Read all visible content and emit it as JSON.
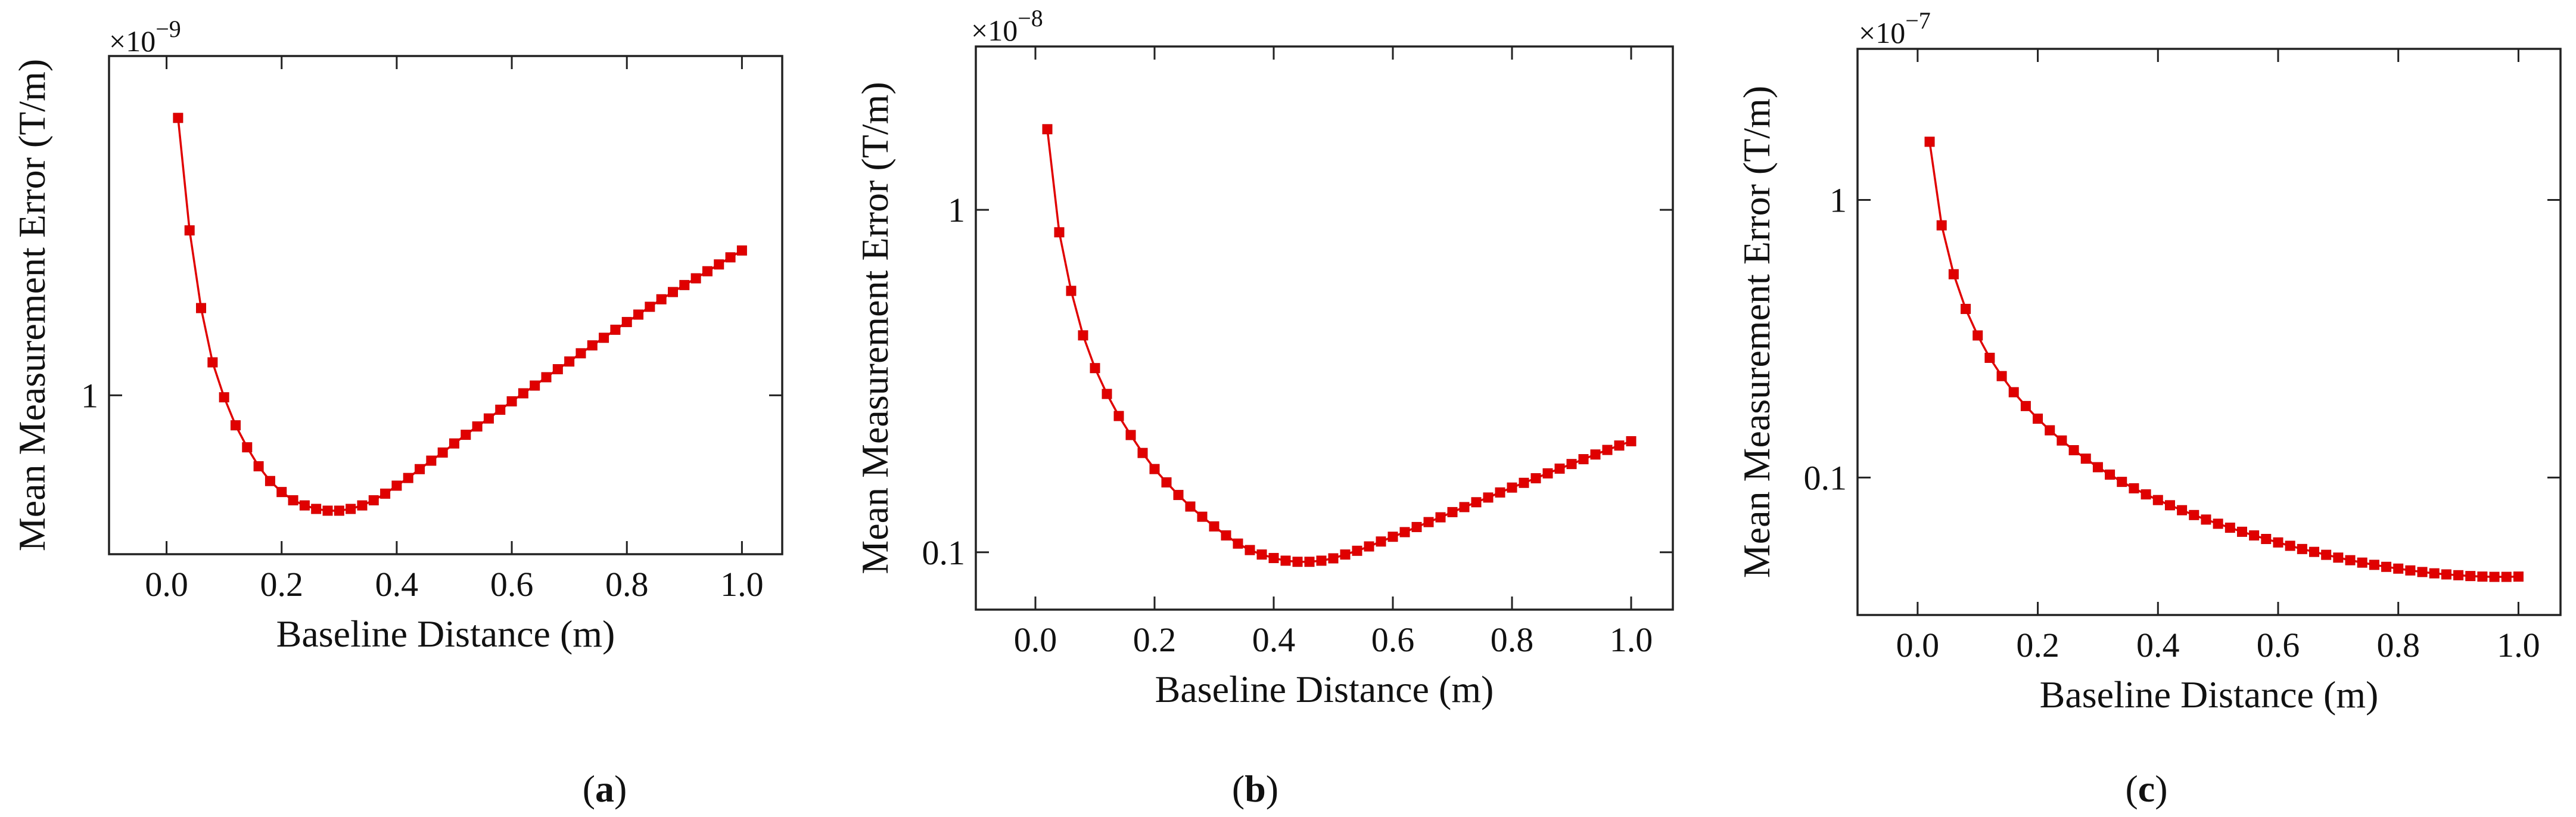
{
  "figure": {
    "panels": [
      {
        "id": "a",
        "label_open": "(",
        "label_letter": "a",
        "label_close": ")",
        "multiplier": "×10",
        "exponent": "−9"
      },
      {
        "id": "b",
        "label_open": "(",
        "label_letter": "b",
        "label_close": ")",
        "multiplier": "×10",
        "exponent": "−8"
      },
      {
        "id": "c",
        "label_open": "(",
        "label_letter": "c",
        "label_close": ")",
        "multiplier": "×10",
        "exponent": "−7"
      }
    ]
  },
  "chart_data": [
    {
      "type": "line",
      "title": "",
      "xlabel": "Baseline Distance (m)",
      "ylabel": "Mean Measurement Error (T/m)",
      "xlim": [
        -0.1,
        1.07
      ],
      "yscale": "log",
      "ylim": [
        0.45,
        5.5
      ],
      "x_ticks": [
        0.0,
        0.2,
        0.4,
        0.6,
        0.8,
        1.0
      ],
      "x_tick_labels": [
        "0.0",
        "0.2",
        "0.4",
        "0.6",
        "0.8",
        "1.0"
      ],
      "y_ticks": [
        1
      ],
      "y_tick_labels": [
        "1"
      ],
      "y_unit_multiplier": "1e-9",
      "marker": "square",
      "color": "#e00000",
      "series": [
        {
          "name": "Mean Measurement Error",
          "x": [
            0.02,
            0.04,
            0.06,
            0.08,
            0.1,
            0.12,
            0.14,
            0.16,
            0.18,
            0.2,
            0.22,
            0.24,
            0.26,
            0.28,
            0.3,
            0.32,
            0.34,
            0.36,
            0.38,
            0.4,
            0.42,
            0.44,
            0.46,
            0.48,
            0.5,
            0.52,
            0.54,
            0.56,
            0.58,
            0.6,
            0.62,
            0.64,
            0.66,
            0.68,
            0.7,
            0.72,
            0.74,
            0.76,
            0.78,
            0.8,
            0.82,
            0.84,
            0.86,
            0.88,
            0.9,
            0.92,
            0.94,
            0.96,
            0.98,
            1.0
          ],
          "y": [
            4.03,
            2.29,
            1.55,
            1.18,
            0.99,
            0.86,
            0.77,
            0.7,
            0.65,
            0.615,
            0.59,
            0.575,
            0.565,
            0.56,
            0.56,
            0.565,
            0.575,
            0.59,
            0.61,
            0.635,
            0.66,
            0.69,
            0.72,
            0.75,
            0.785,
            0.82,
            0.855,
            0.89,
            0.93,
            0.97,
            1.01,
            1.05,
            1.095,
            1.14,
            1.185,
            1.235,
            1.285,
            1.335,
            1.39,
            1.445,
            1.5,
            1.56,
            1.62,
            1.68,
            1.74,
            1.8,
            1.865,
            1.93,
            2.0,
            2.07
          ]
        }
      ]
    },
    {
      "type": "line",
      "title": "",
      "xlabel": "Baseline Distance (m)",
      "ylabel": "Mean Measurement Error (T/m)",
      "xlim": [
        -0.1,
        1.07
      ],
      "yscale": "log",
      "ylim": [
        0.068,
        3.0
      ],
      "x_ticks": [
        0.0,
        0.2,
        0.4,
        0.6,
        0.8,
        1.0
      ],
      "x_tick_labels": [
        "0.0",
        "0.2",
        "0.4",
        "0.6",
        "0.8",
        "1.0"
      ],
      "y_ticks": [
        0.1,
        1
      ],
      "y_tick_labels": [
        "0.1",
        "1"
      ],
      "y_unit_multiplier": "1e-8",
      "marker": "square",
      "color": "#e00000",
      "series": [
        {
          "name": "Mean Measurement Error",
          "x": [
            0.02,
            0.04,
            0.06,
            0.08,
            0.1,
            0.12,
            0.14,
            0.16,
            0.18,
            0.2,
            0.22,
            0.24,
            0.26,
            0.28,
            0.3,
            0.32,
            0.34,
            0.36,
            0.38,
            0.4,
            0.42,
            0.44,
            0.46,
            0.48,
            0.5,
            0.52,
            0.54,
            0.56,
            0.58,
            0.6,
            0.62,
            0.64,
            0.66,
            0.68,
            0.7,
            0.72,
            0.74,
            0.76,
            0.78,
            0.8,
            0.82,
            0.84,
            0.86,
            0.88,
            0.9,
            0.92,
            0.94,
            0.96,
            0.98,
            1.0
          ],
          "y": [
            1.72,
            0.86,
            0.58,
            0.43,
            0.345,
            0.29,
            0.25,
            0.22,
            0.195,
            0.175,
            0.16,
            0.147,
            0.136,
            0.127,
            0.119,
            0.112,
            0.106,
            0.1015,
            0.0985,
            0.0962,
            0.0945,
            0.0938,
            0.0938,
            0.0945,
            0.096,
            0.0985,
            0.101,
            0.104,
            0.1075,
            0.111,
            0.1145,
            0.1185,
            0.1225,
            0.1265,
            0.131,
            0.1355,
            0.14,
            0.1445,
            0.1495,
            0.1545,
            0.1595,
            0.1645,
            0.17,
            0.1755,
            0.181,
            0.187,
            0.193,
            0.199,
            0.205,
            0.211
          ]
        }
      ]
    },
    {
      "type": "line",
      "title": "",
      "xlabel": "Baseline Distance (m)",
      "ylabel": "Mean Measurement Error (T/m)",
      "xlim": [
        -0.1,
        1.07
      ],
      "yscale": "log",
      "ylim": [
        0.032,
        3.5
      ],
      "x_ticks": [
        0.0,
        0.2,
        0.4,
        0.6,
        0.8,
        1.0
      ],
      "x_tick_labels": [
        "0.0",
        "0.2",
        "0.4",
        "0.6",
        "0.8",
        "1.0"
      ],
      "y_ticks": [
        0.1,
        1
      ],
      "y_tick_labels": [
        "0.1",
        "1"
      ],
      "y_unit_multiplier": "1e-7",
      "marker": "square",
      "color": "#e00000",
      "series": [
        {
          "name": "Mean Measurement Error",
          "x": [
            0.02,
            0.04,
            0.06,
            0.08,
            0.1,
            0.12,
            0.14,
            0.16,
            0.18,
            0.2,
            0.22,
            0.24,
            0.26,
            0.28,
            0.3,
            0.32,
            0.34,
            0.36,
            0.38,
            0.4,
            0.42,
            0.44,
            0.46,
            0.48,
            0.5,
            0.52,
            0.54,
            0.56,
            0.58,
            0.6,
            0.62,
            0.64,
            0.66,
            0.68,
            0.7,
            0.72,
            0.74,
            0.76,
            0.78,
            0.8,
            0.82,
            0.84,
            0.86,
            0.88,
            0.9,
            0.92,
            0.94,
            0.96,
            0.98,
            1.0
          ],
          "y": [
            1.62,
            0.81,
            0.54,
            0.405,
            0.325,
            0.27,
            0.232,
            0.203,
            0.181,
            0.163,
            0.148,
            0.136,
            0.1255,
            0.117,
            0.109,
            0.1025,
            0.0965,
            0.0915,
            0.087,
            0.083,
            0.0795,
            0.0763,
            0.0733,
            0.0706,
            0.0682,
            0.066,
            0.0638,
            0.0619,
            0.0601,
            0.0584,
            0.0568,
            0.0553,
            0.054,
            0.0527,
            0.0515,
            0.0504,
            0.0494,
            0.0485,
            0.0477,
            0.047,
            0.0463,
            0.0457,
            0.0452,
            0.0448,
            0.0445,
            0.0442,
            0.044,
            0.0439,
            0.0439,
            0.044
          ]
        }
      ]
    }
  ]
}
